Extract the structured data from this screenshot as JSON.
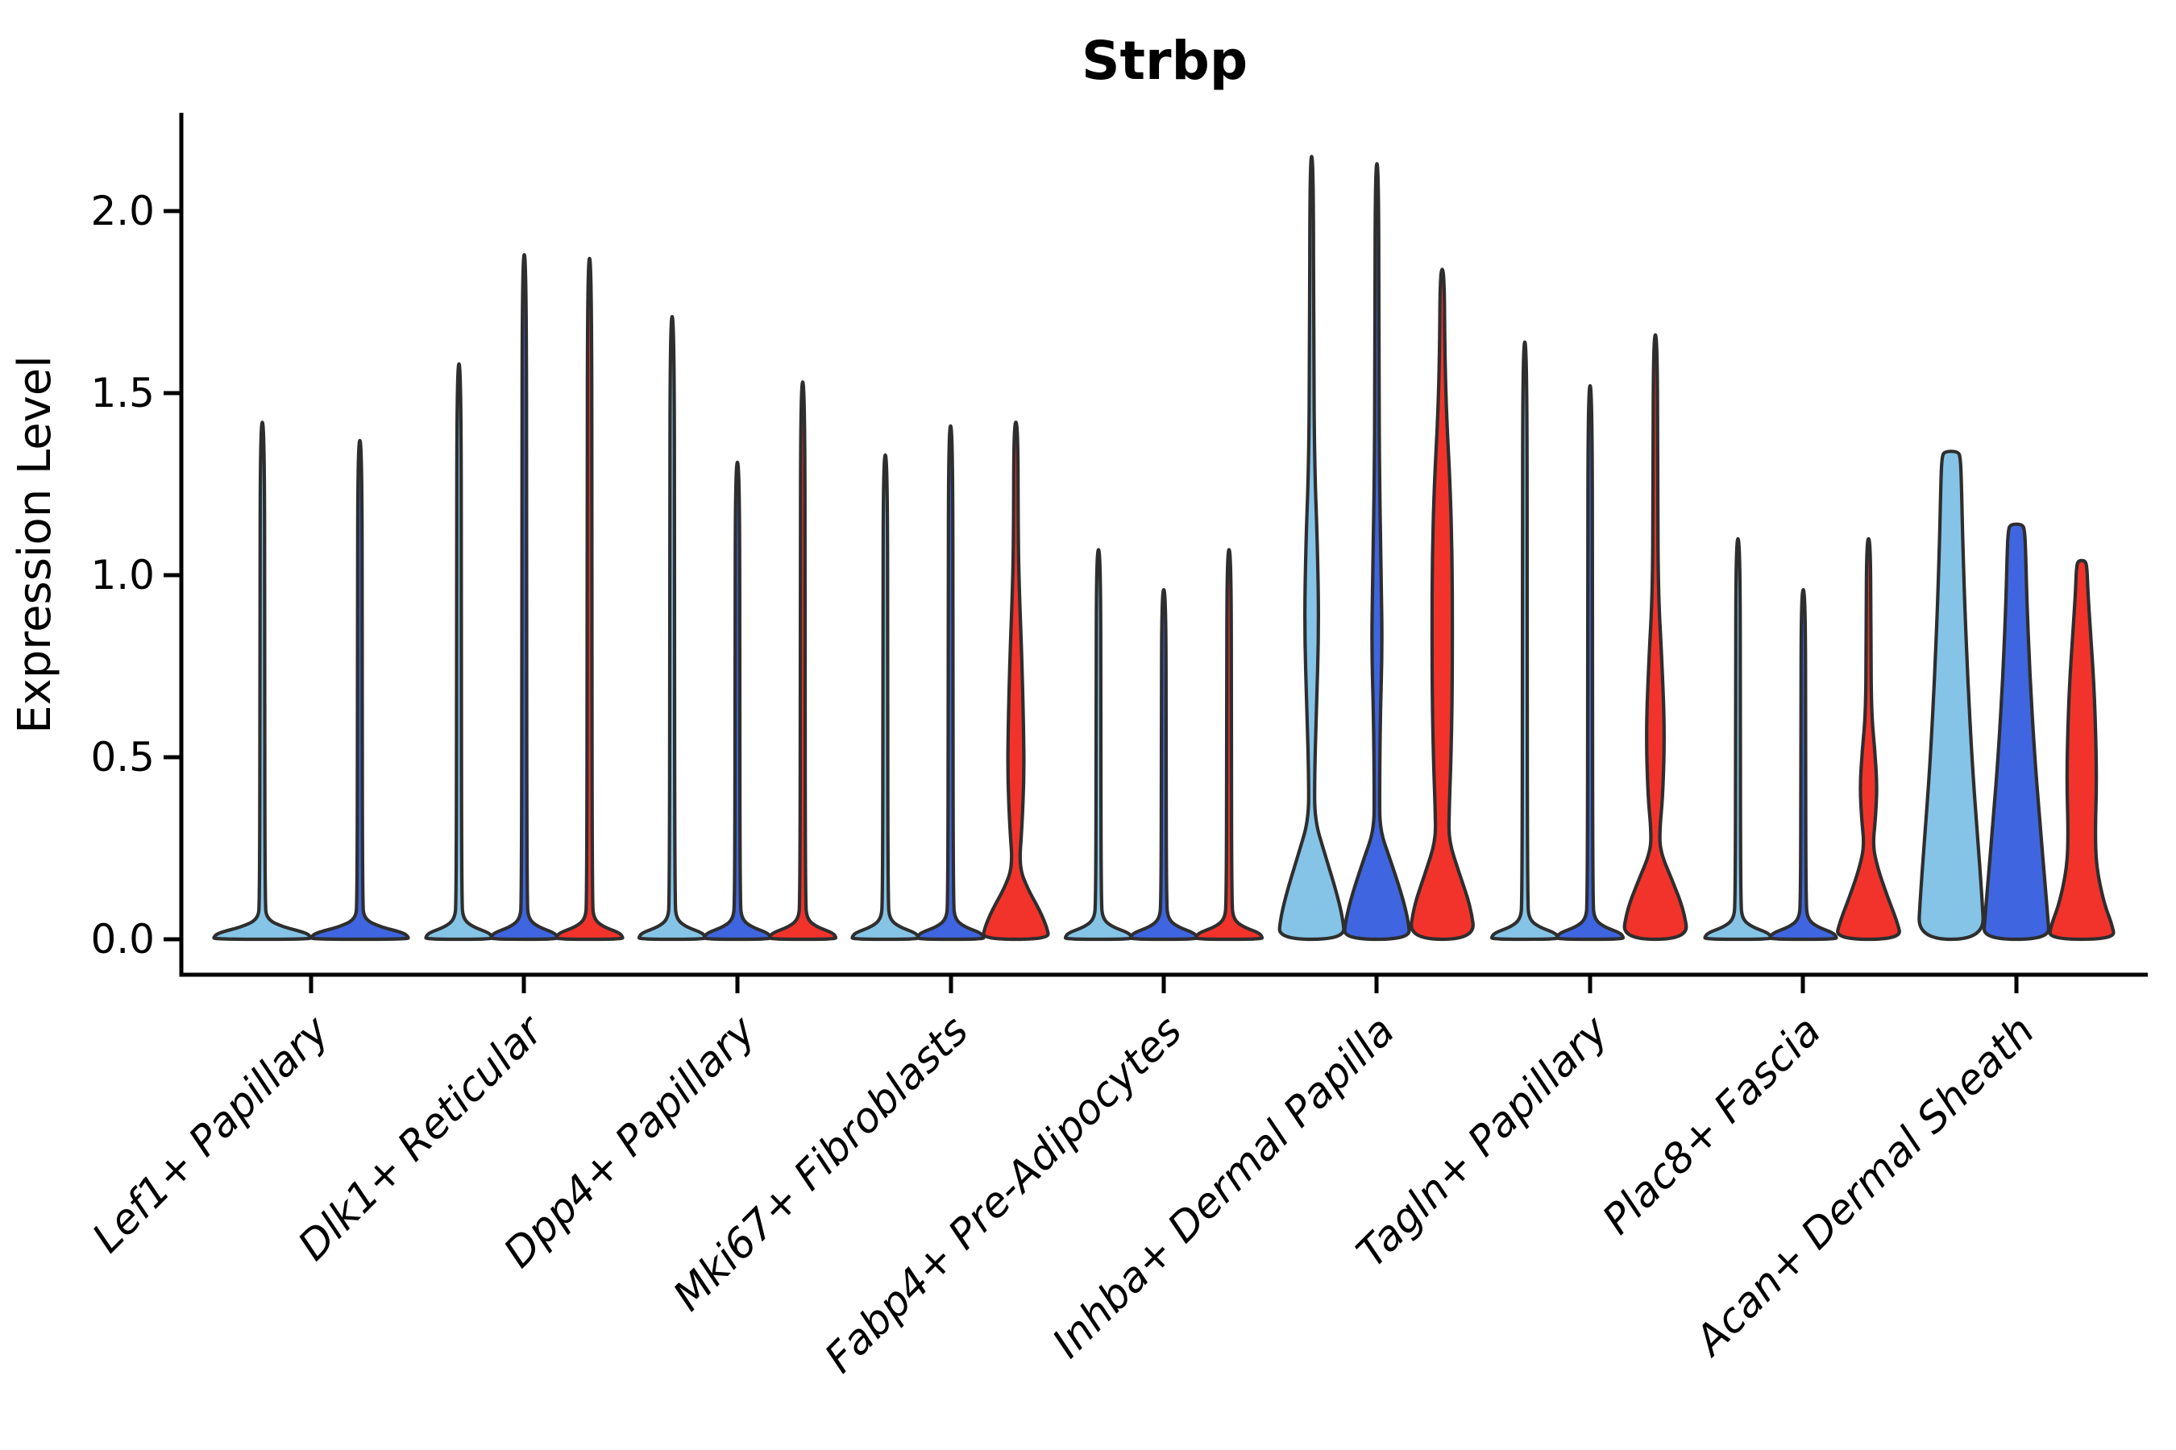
{
  "title": "Strbp",
  "y_axis": {
    "label": "Expression Level",
    "ticks": [
      "0.0",
      "0.5",
      "1.0",
      "1.5",
      "2.0"
    ]
  },
  "palette": {
    "sample1": "#85C4E6",
    "sample2": "#3F66E0",
    "sample3": "#F2332B",
    "outline": "#2E2E2E",
    "axis": "#000000",
    "background": "#FFFFFF"
  },
  "chart_data": {
    "type": "violin",
    "title": "Strbp",
    "ylabel": "Expression Level",
    "ylim": [
      -0.1,
      2.26
    ],
    "yticks": [
      0.0,
      0.5,
      1.0,
      1.5,
      2.0
    ],
    "grid": false,
    "legend": "none",
    "series": [
      {
        "id": "sample1",
        "color": "#85C4E6"
      },
      {
        "id": "sample2",
        "color": "#3F66E0"
      },
      {
        "id": "sample3",
        "color": "#F2332B"
      }
    ],
    "categories": [
      "Lef1+ Papillary",
      "Dlk1+ Reticular",
      "Dpp4+ Papillary",
      "Mki67+ Fibroblasts",
      "Fabp4+ Pre-Adipocytes",
      "Inhba+ Dermal Papilla",
      "Tagln+ Papillary",
      "Plac8+ Fascia",
      "Acan+ Dermal Sheath"
    ],
    "groups": [
      {
        "category": "Lef1+ Papillary",
        "violins": [
          {
            "sample": 1,
            "max": 1.42,
            "shape": "spike"
          },
          {
            "sample": 2,
            "max": 1.37,
            "shape": "spike"
          }
        ]
      },
      {
        "category": "Dlk1+ Reticular",
        "violins": [
          {
            "sample": 1,
            "max": 1.58,
            "shape": "spike"
          },
          {
            "sample": 2,
            "max": 1.88,
            "shape": "spike"
          },
          {
            "sample": 3,
            "max": 1.87,
            "shape": "spike"
          }
        ]
      },
      {
        "category": "Dpp4+ Papillary",
        "violins": [
          {
            "sample": 1,
            "max": 1.71,
            "shape": "spike"
          },
          {
            "sample": 2,
            "max": 1.31,
            "shape": "spike"
          },
          {
            "sample": 3,
            "max": 1.53,
            "shape": "spike"
          }
        ]
      },
      {
        "category": "Mki67+ Fibroblasts",
        "violins": [
          {
            "sample": 1,
            "max": 1.33,
            "shape": "spike"
          },
          {
            "sample": 2,
            "max": 1.41,
            "shape": "spike"
          },
          {
            "sample": 3,
            "max": 1.42,
            "shape": "profile",
            "profile": [
              [
                1.42,
                0.06
              ],
              [
                1.1,
                0.07
              ],
              [
                0.97,
                0.1
              ],
              [
                0.8,
                0.17
              ],
              [
                0.6,
                0.23
              ],
              [
                0.45,
                0.25
              ],
              [
                0.3,
                0.18
              ],
              [
                0.2,
                0.1
              ],
              [
                0.14,
                0.35
              ],
              [
                0.08,
                0.72
              ],
              [
                0.03,
                0.95
              ],
              [
                0,
                1.0
              ]
            ]
          }
        ]
      },
      {
        "category": "Fabp4+ Pre-Adipocytes",
        "violins": [
          {
            "sample": 1,
            "max": 1.07,
            "shape": "spike"
          },
          {
            "sample": 2,
            "max": 0.96,
            "shape": "spike"
          },
          {
            "sample": 3,
            "max": 1.07,
            "shape": "spike"
          }
        ]
      },
      {
        "category": "Inhba+ Dermal Papilla",
        "violins": [
          {
            "sample": 1,
            "max": 2.15,
            "shape": "profile",
            "profile": [
              [
                2.15,
                0.05
              ],
              [
                1.6,
                0.06
              ],
              [
                1.3,
                0.09
              ],
              [
                1.1,
                0.17
              ],
              [
                0.86,
                0.22
              ],
              [
                0.62,
                0.14
              ],
              [
                0.45,
                0.09
              ],
              [
                0.33,
                0.09
              ],
              [
                0.24,
                0.38
              ],
              [
                0.14,
                0.72
              ],
              [
                0.06,
                0.94
              ],
              [
                0,
                1.0
              ]
            ]
          },
          {
            "sample": 2,
            "max": 2.13,
            "shape": "profile",
            "profile": [
              [
                2.13,
                0.05
              ],
              [
                1.55,
                0.06
              ],
              [
                1.25,
                0.08
              ],
              [
                1.0,
                0.13
              ],
              [
                0.8,
                0.16
              ],
              [
                0.6,
                0.1
              ],
              [
                0.4,
                0.08
              ],
              [
                0.3,
                0.09
              ],
              [
                0.22,
                0.4
              ],
              [
                0.12,
                0.76
              ],
              [
                0.05,
                0.95
              ],
              [
                0,
                1.0
              ]
            ]
          },
          {
            "sample": 3,
            "max": 1.84,
            "shape": "profile",
            "profile": [
              [
                1.84,
                0.06
              ],
              [
                1.6,
                0.08
              ],
              [
                1.42,
                0.14
              ],
              [
                1.25,
                0.24
              ],
              [
                1.05,
                0.3
              ],
              [
                0.85,
                0.31
              ],
              [
                0.65,
                0.3
              ],
              [
                0.48,
                0.26
              ],
              [
                0.35,
                0.21
              ],
              [
                0.27,
                0.2
              ],
              [
                0.18,
                0.52
              ],
              [
                0.09,
                0.86
              ],
              [
                0,
                1.0
              ]
            ]
          }
        ]
      },
      {
        "category": "Tagln+ Papillary",
        "violins": [
          {
            "sample": 1,
            "max": 1.64,
            "shape": "spike"
          },
          {
            "sample": 2,
            "max": 1.52,
            "shape": "spike"
          },
          {
            "sample": 3,
            "max": 1.66,
            "shape": "profile",
            "profile": [
              [
                1.66,
                0.06
              ],
              [
                1.2,
                0.07
              ],
              [
                0.95,
                0.09
              ],
              [
                0.78,
                0.19
              ],
              [
                0.58,
                0.28
              ],
              [
                0.4,
                0.23
              ],
              [
                0.3,
                0.13
              ],
              [
                0.24,
                0.15
              ],
              [
                0.16,
                0.52
              ],
              [
                0.08,
                0.86
              ],
              [
                0,
                1.0
              ]
            ]
          }
        ]
      },
      {
        "category": "Plac8+ Fascia",
        "violins": [
          {
            "sample": 1,
            "max": 1.1,
            "shape": "spike"
          },
          {
            "sample": 2,
            "max": 0.96,
            "shape": "spike"
          },
          {
            "sample": 3,
            "max": 1.1,
            "shape": "profile",
            "profile": [
              [
                1.1,
                0.06
              ],
              [
                0.8,
                0.07
              ],
              [
                0.62,
                0.09
              ],
              [
                0.52,
                0.19
              ],
              [
                0.42,
                0.26
              ],
              [
                0.33,
                0.21
              ],
              [
                0.26,
                0.13
              ],
              [
                0.2,
                0.26
              ],
              [
                0.12,
                0.56
              ],
              [
                0.05,
                0.86
              ],
              [
                0,
                1.0
              ]
            ]
          }
        ]
      },
      {
        "category": "Acan+ Dermal Sheath",
        "violins": [
          {
            "sample": 1,
            "max": 1.34,
            "shape": "profile",
            "profile": [
              [
                1.34,
                0.22
              ],
              [
                1.32,
                0.28
              ],
              [
                1.26,
                0.31
              ],
              [
                1.1,
                0.35
              ],
              [
                0.92,
                0.41
              ],
              [
                0.7,
                0.51
              ],
              [
                0.48,
                0.64
              ],
              [
                0.28,
                0.8
              ],
              [
                0.12,
                0.93
              ],
              [
                0,
                1.0
              ]
            ]
          },
          {
            "sample": 2,
            "max": 1.14,
            "shape": "profile",
            "profile": [
              [
                1.14,
                0.19
              ],
              [
                1.12,
                0.25
              ],
              [
                1.06,
                0.28
              ],
              [
                0.92,
                0.32
              ],
              [
                0.72,
                0.41
              ],
              [
                0.52,
                0.54
              ],
              [
                0.33,
                0.7
              ],
              [
                0.16,
                0.86
              ],
              [
                0.06,
                0.95
              ],
              [
                0,
                1.0
              ]
            ]
          },
          {
            "sample": 3,
            "max": 1.04,
            "shape": "profile",
            "profile": [
              [
                1.04,
                0.11
              ],
              [
                1.02,
                0.16
              ],
              [
                0.95,
                0.19
              ],
              [
                0.84,
                0.27
              ],
              [
                0.7,
                0.37
              ],
              [
                0.55,
                0.43
              ],
              [
                0.42,
                0.45
              ],
              [
                0.3,
                0.41
              ],
              [
                0.2,
                0.44
              ],
              [
                0.1,
                0.67
              ],
              [
                0.04,
                0.92
              ],
              [
                0,
                1.0
              ]
            ]
          }
        ]
      }
    ]
  }
}
